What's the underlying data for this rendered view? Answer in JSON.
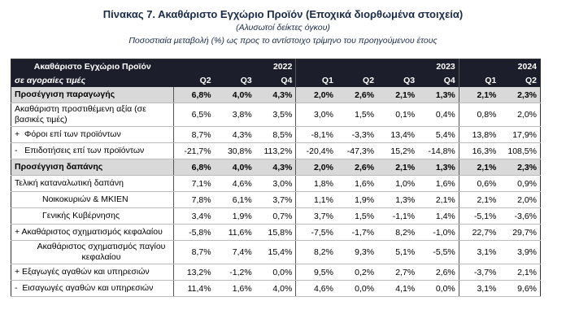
{
  "title": "Πίνακας 7. Ακαθάριστο Εγχώριο Προϊόν (Εποχικά διορθωμένα στοιχεία)",
  "subtitle": "(Αλυσωτοί δείκτες όγκου)",
  "note": "Ποσοστιαία μεταβολή (%) ως προς το αντίστοιχο τρίμηνο  του προηγούμενου έτους",
  "table": {
    "header": {
      "label_top": "Ακαθάριστο Εγχώριο Προϊόν",
      "label_bottom": "σε αγοραίες τιμές",
      "years": [
        "2022",
        "2023",
        "2024"
      ],
      "quarters": [
        "Q2",
        "Q3",
        "Q4",
        "Q1",
        "Q2",
        "Q3",
        "Q4",
        "Q1",
        "Q2"
      ]
    },
    "rows": [
      {
        "label": "Προσέγγιση παραγωγής",
        "values": [
          "6,8%",
          "4,0%",
          "4,3%",
          "2,0%",
          "2,6%",
          "2,1%",
          "1,3%",
          "2,1%",
          "2,3%"
        ]
      },
      {
        "label": "Ακαθάριστη προστιθέμενη αξία (σε βασικές τιμές)",
        "values": [
          "6,5%",
          "3,8%",
          "3,5%",
          "3,0%",
          "1,5%",
          "0,1%",
          "0,4%",
          "0,8%",
          "2,0%"
        ]
      },
      {
        "label": "+  Φόροι επί των προϊόντων",
        "values": [
          "8,7%",
          "4,3%",
          "8,5%",
          "-8,1%",
          "-3,3%",
          "13,4%",
          "5,4%",
          "13,8%",
          "17,9%"
        ]
      },
      {
        "label": "-   Επιδοτήσεις επί των προϊόντων",
        "values": [
          "-21,7%",
          "30,8%",
          "113,2%",
          "-20,4%",
          "-47,3%",
          "15,2%",
          "-14,8%",
          "16,3%",
          "108,5%"
        ]
      },
      {
        "label": "Προσέγγιση δαπάνης",
        "values": [
          "6,8%",
          "4,0%",
          "4,3%",
          "2,0%",
          "2,6%",
          "2,1%",
          "1,3%",
          "2,1%",
          "2,3%"
        ]
      },
      {
        "label": "Τελική καταναλωτική δαπάνη",
        "values": [
          "7,1%",
          "4,6%",
          "3,0%",
          "1,8%",
          "1,6%",
          "1,0%",
          "1,6%",
          "0,6%",
          "0,9%"
        ]
      },
      {
        "label": "Νοικοκυριών & ΜΚΙΕΝ",
        "values": [
          "7,8%",
          "6,1%",
          "3,7%",
          "1,1%",
          "1,9%",
          "1,3%",
          "2,1%",
          "2,1%",
          "2,0%"
        ]
      },
      {
        "label": "Γενικής Κυβέρνησης",
        "values": [
          "3,4%",
          "1,9%",
          "0,7%",
          "3,7%",
          "1,5%",
          "-1,1%",
          "1,4%",
          "-5,1%",
          "-3,6%"
        ]
      },
      {
        "label": "+ Ακαθάριστος σχηματισμός κεφαλαίου",
        "values": [
          "-5,8%",
          "11,6%",
          "15,8%",
          "-7,5%",
          "-1,7%",
          "8,2%",
          "-1,0%",
          "22,7%",
          "29,7%"
        ]
      },
      {
        "label": "Ακαθάριστος σχηματισμός παγίου κεφαλαίου",
        "values": [
          "8,7%",
          "7,4%",
          "15,4%",
          "8,2%",
          "9,3%",
          "5,1%",
          "-5,5%",
          "3,1%",
          "3,9%"
        ]
      },
      {
        "label": "+ Εξαγωγές αγαθών και υπηρεσιών",
        "values": [
          "13,2%",
          "-1,2%",
          "0,0%",
          "9,5%",
          "0,2%",
          "2,7%",
          "2,6%",
          "-3,7%",
          "2,1%"
        ]
      },
      {
        "label": "-  Εισαγωγές αγαθών και υπηρεσιών",
        "values": [
          "11,4%",
          "1,6%",
          "4,0%",
          "4,6%",
          "0,0%",
          "4,1%",
          "0,0%",
          "3,1%",
          "9,6%"
        ]
      }
    ]
  }
}
